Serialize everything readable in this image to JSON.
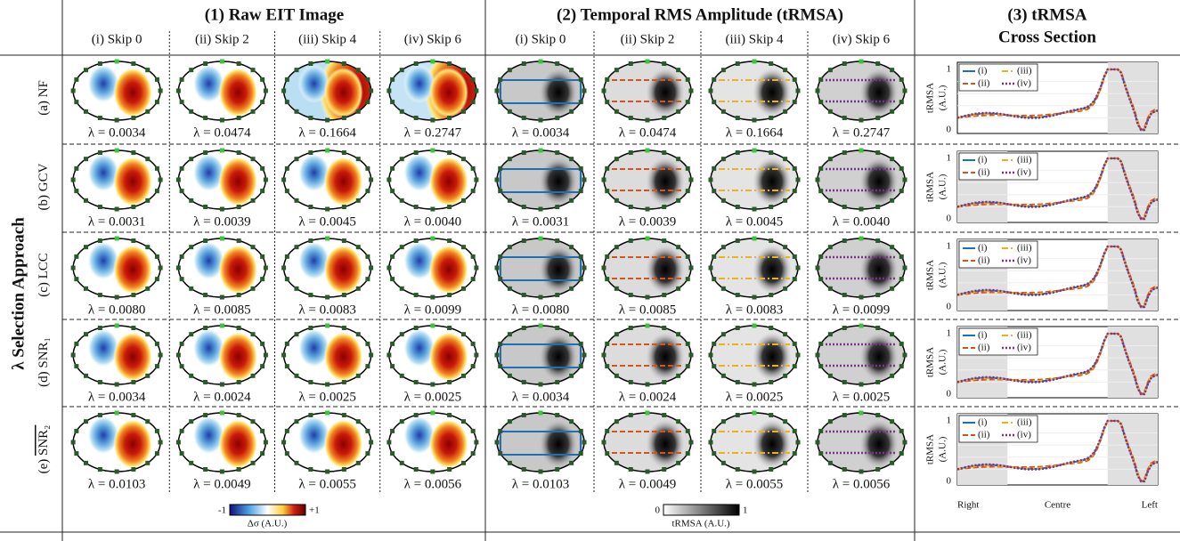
{
  "side_title": "λ Selection Approach",
  "sections": [
    {
      "title": [
        "(1) Raw EIT Image"
      ],
      "columns": [
        "(i) Skip 0",
        "(ii) Skip 2",
        "(iii) Skip 4",
        "(iv) Skip 6"
      ]
    },
    {
      "title": [
        "(2) Temporal RMS Amplitude (tRMSA)"
      ],
      "columns": [
        "(i) Skip 0",
        "(ii) Skip 2",
        "(iii) Skip 4",
        "(iv) Skip 6"
      ]
    },
    {
      "title": [
        "(3) tRMSA",
        "Cross Section"
      ]
    }
  ],
  "rows": [
    {
      "tag": "(a)",
      "name": "NF",
      "lambdas": [
        "λ = 0.0034",
        "λ = 0.0474",
        "λ = 0.1664",
        "λ = 0.2747"
      ]
    },
    {
      "tag": "(b)",
      "name": "GCV",
      "lambdas": [
        "λ = 0.0031",
        "λ = 0.0039",
        "λ = 0.0045",
        "λ = 0.0040"
      ]
    },
    {
      "tag": "(c)",
      "name": "LCC",
      "lambdas": [
        "λ = 0.0080",
        "λ = 0.0085",
        "λ = 0.0083",
        "λ = 0.0099"
      ]
    },
    {
      "tag": "(d)",
      "name": "SNR₁",
      "lambdas": [
        "λ = 0.0034",
        "λ = 0.0024",
        "λ = 0.0025",
        "λ = 0.0025"
      ]
    },
    {
      "tag": "(e)",
      "name": "SNR₂",
      "overline": true,
      "lambdas": [
        "λ = 0.0103",
        "λ = 0.0049",
        "λ = 0.0055",
        "λ = 0.0056"
      ]
    }
  ],
  "cross_section": {
    "y_label": [
      "tRMSA",
      "(A.U.)"
    ],
    "yticks": [
      "0",
      "1"
    ],
    "legend": [
      "(i)",
      "(ii)",
      "(iii)",
      "(iv)"
    ],
    "x_labels": [
      "Right",
      "Centre",
      "Left"
    ]
  },
  "colorbars": [
    {
      "min": "-1",
      "max": "+1",
      "label": "Δσ (A.U.)"
    },
    {
      "min": "0",
      "max": "1",
      "label": "tRMSA (A.U.)"
    }
  ]
}
